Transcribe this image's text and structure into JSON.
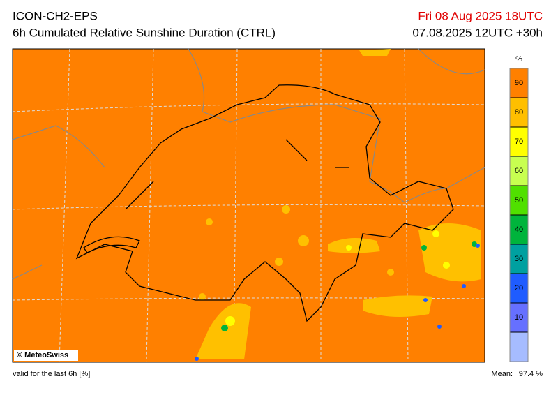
{
  "header": {
    "model": "ICON-CH2-EPS",
    "product": "6h Cumulated Relative Sunshine Duration (CTRL)",
    "valid_time": "Fri 08 Aug 2025 18UTC",
    "run": "07.08.2025 12UTC +30h"
  },
  "map": {
    "copyright": "© MeteoSwiss"
  },
  "colorbar": {
    "unit": "%",
    "ticks": [
      10,
      20,
      30,
      40,
      50,
      60,
      70,
      80,
      90
    ],
    "colors": [
      "#a6bcff",
      "#6670ff",
      "#1f5cff",
      "#00a0a0",
      "#00b43c",
      "#50e000",
      "#c8ff50",
      "#ffff00",
      "#ffbf00",
      "#ff8000"
    ]
  },
  "footer": {
    "note": "valid for the last 6h [%]",
    "mean_label": "Mean:",
    "mean_value": "97.4 %"
  }
}
